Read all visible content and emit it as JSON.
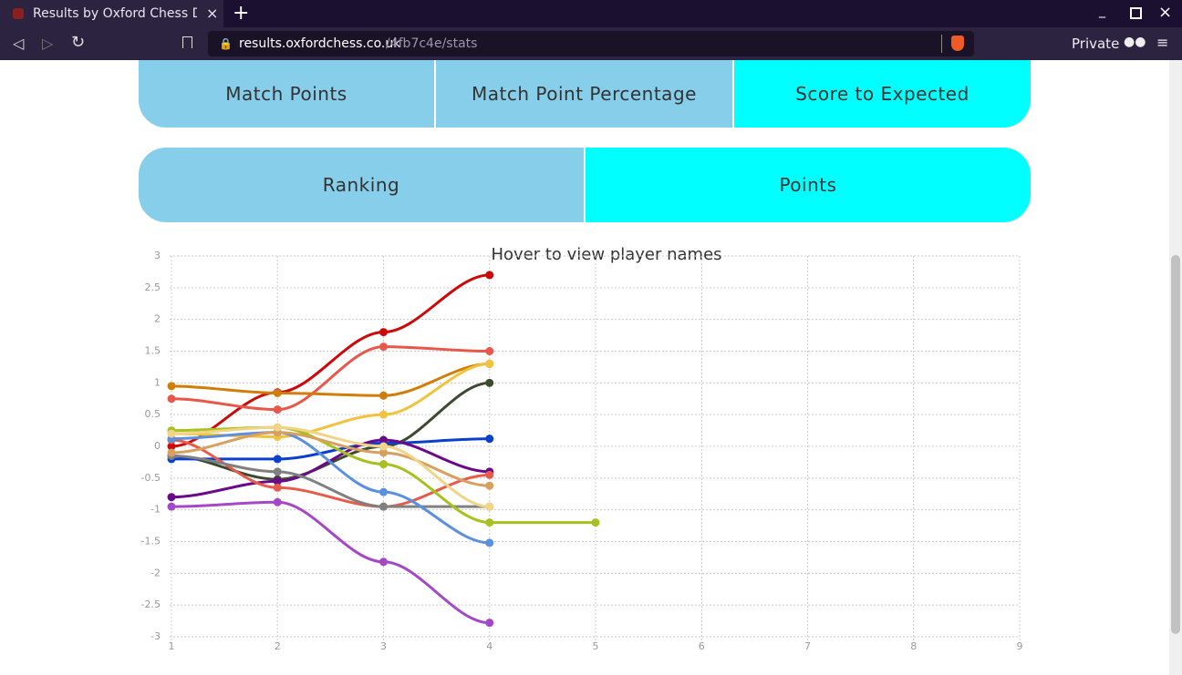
{
  "browser": {
    "tab_title": "Results by Oxford Chess D",
    "url_host": "results.oxfordchess.co.uk",
    "url_path": "/4fb7c4e/stats",
    "private_label": "Private"
  },
  "buttons": {
    "row1": [
      "Match Points",
      "Match Point Percentage",
      "Score to Expected"
    ],
    "row2": [
      "Ranking",
      "Points"
    ]
  },
  "chart_data": {
    "type": "line",
    "title": "Hover to view player names",
    "x": [
      1,
      2,
      3,
      4,
      5
    ],
    "xlim": [
      1,
      9
    ],
    "xticks": [
      1,
      2,
      3,
      4,
      5,
      6,
      7,
      8,
      9
    ],
    "ylim": [
      -3,
      3
    ],
    "yticks": [
      -3,
      -2.5,
      -2,
      -1.5,
      -1,
      -0.5,
      0,
      0.5,
      1,
      1.5,
      2,
      2.5,
      3
    ],
    "grid": true,
    "series": [
      {
        "color": "#cc0a0a",
        "values": [
          0.0,
          0.85,
          1.8,
          2.7,
          null
        ]
      },
      {
        "color": "#e8574a",
        "values": [
          0.75,
          0.58,
          1.57,
          1.5,
          null
        ]
      },
      {
        "color": "#d07d0a",
        "values": [
          0.95,
          0.84,
          0.8,
          1.3,
          null
        ]
      },
      {
        "color": "#f2c23c",
        "values": [
          0.2,
          0.15,
          0.5,
          1.3,
          null
        ]
      },
      {
        "color": "#3c4a30",
        "values": [
          -0.15,
          -0.52,
          0.0,
          1.0,
          null
        ]
      },
      {
        "color": "#0a40cc",
        "values": [
          -0.2,
          -0.2,
          0.05,
          0.12,
          null
        ]
      },
      {
        "color": "#6a0a8a",
        "values": [
          -0.8,
          -0.55,
          0.1,
          -0.4,
          null
        ]
      },
      {
        "color": "#e85a4a",
        "values": [
          0.1,
          -0.65,
          -0.95,
          -0.45,
          null
        ]
      },
      {
        "color": "#808080",
        "values": [
          -0.15,
          -0.4,
          -0.95,
          -0.95,
          null
        ]
      },
      {
        "color": "#5b8fe0",
        "values": [
          0.12,
          0.22,
          -0.72,
          -1.52,
          null
        ]
      },
      {
        "color": "#a8c020",
        "values": [
          0.25,
          0.3,
          -0.28,
          -1.2,
          -1.2
        ]
      },
      {
        "color": "#d8a060",
        "values": [
          -0.1,
          0.22,
          -0.1,
          -0.62,
          null
        ]
      },
      {
        "color": "#f0d488",
        "values": [
          0.2,
          0.3,
          0.0,
          -0.95,
          null
        ]
      },
      {
        "color": "#a448c8",
        "values": [
          -0.95,
          -0.88,
          -1.82,
          -2.78,
          null
        ]
      }
    ]
  }
}
